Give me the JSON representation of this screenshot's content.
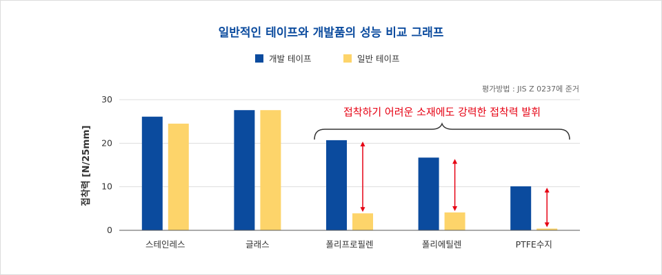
{
  "chart_data": {
    "type": "bar",
    "title": "일반적인 테이프와 개발품의 성능 비교 그래프",
    "ylabel": "접착력 [N/25mm]",
    "xlabel": "",
    "ylim": [
      0,
      30
    ],
    "yticks": [
      0,
      10,
      20,
      30
    ],
    "grid": true,
    "legend_position": "top-center",
    "categories": [
      "스테인레스",
      "글래스",
      "폴리프로필렌",
      "폴리에틸렌",
      "PTFE수지"
    ],
    "series": [
      {
        "name": "개발 테이프",
        "color": "#0b4b9e",
        "values": [
          26.1,
          27.6,
          20.7,
          16.7,
          10.1
        ]
      },
      {
        "name": "일반 테이프",
        "color": "#fdd46a",
        "values": [
          24.5,
          27.6,
          3.9,
          4.1,
          0.4
        ]
      }
    ],
    "note": "평가방법 : JIS Z 0237에 준거",
    "annotation": "접착하기 어려운 소재에도 강력한 접착력 발휘",
    "highlight_categories": [
      "폴리프로필렌",
      "폴리에틸렌",
      "PTFE수지"
    ],
    "colors": {
      "title": "#0b4b9e",
      "annotation": "#e60012",
      "arrow": "#e60012",
      "axis": "#555555",
      "grid": "#dddddd",
      "text": "#333333"
    }
  }
}
